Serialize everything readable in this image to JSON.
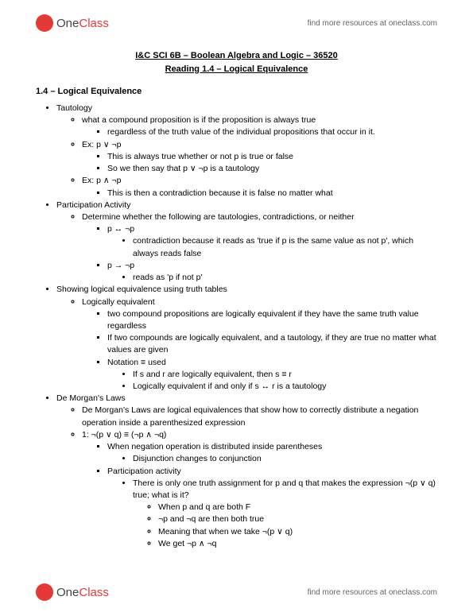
{
  "brand": {
    "part1": "One",
    "part2": "Class"
  },
  "resources_text": "find more resources at oneclass.com",
  "title": {
    "line1": "I&C SCI 6B – Boolean Algebra and Logic – 36520",
    "line2": "Reading 1.4 – Logical Equivalence"
  },
  "section_heading": "1.4 – Logical Equivalence",
  "bullets": {
    "b1": "Tautology",
    "b1_1": "what a compound proposition is if the proposition is always true",
    "b1_1_1": "regardless of the truth value of the individual propositions that occur in it.",
    "b1_2": "Ex: p ∨ ¬p",
    "b1_2_1": "This is always true whether or not p is true or false",
    "b1_2_2": "So we then say that p ∨ ¬p is a tautology",
    "b1_3": "Ex: p ∧ ¬p",
    "b1_3_1": "This is then a contradiction because it is false no matter what",
    "b2": "Participation Activity",
    "b2_1": "Determine whether the following are tautologies, contradictions, or neither",
    "b2_1_1": "p ↔ ¬p",
    "b2_1_1_1": "contradiction because it reads as 'true if p is the same value as not p', which always reads false",
    "b2_1_2": "p → ¬p",
    "b2_1_2_1": "reads as 'p if not p'",
    "b3": "Showing logical equivalence using truth tables",
    "b3_1": "Logically equivalent",
    "b3_1_1": "two compound propositions are logically equivalent if they have the same truth value regardless",
    "b3_1_2": "If two compounds are logically equivalent, and a tautology, if they are true no matter what values are given",
    "b3_1_3": "Notation ≡ used",
    "b3_1_3_1": "If s and r are logically equivalent, then s ≡ r",
    "b3_1_3_2": "Logically equivalent if and only if s ↔ r is a tautology",
    "b4": "De Morgan's Laws",
    "b4_1": "De Morgan's Laws are logical equivalences that show how to correctly distribute a negation operation inside a parenthesized expression",
    "b4_2": "1: ¬(p ∨ q) ≡ (¬p ∧ ¬q)",
    "b4_2_1": "When negation operation is distributed inside parentheses",
    "b4_2_1_1": "Disjunction changes to conjunction",
    "b4_2_2": "Participation activity",
    "b4_2_2_1": "There is only one truth assignment for p and q that makes the expression ¬(p ∨ q) true; what is it?",
    "b4_2_2_1_1": "When p and q are both F",
    "b4_2_2_1_2": "¬p and ¬q are then both true",
    "b4_2_2_1_3": "Meaning that when we take ¬(p ∨ q)",
    "b4_2_2_1_4": "We get ¬p ∧ ¬q"
  }
}
